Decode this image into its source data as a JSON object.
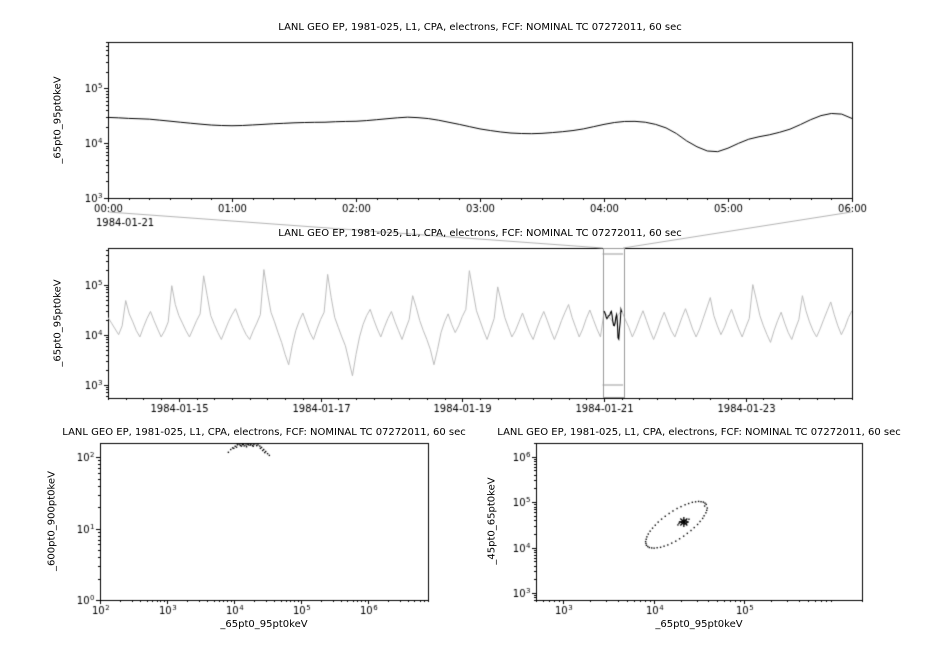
{
  "colors": {
    "background": "#ffffff",
    "series": "#000000",
    "context_series": "#bdbdbd",
    "selection": "#9a9a9a",
    "connector": "#b4b4b4",
    "frame": "#000000",
    "text": "#000000"
  },
  "chart_data": [
    {
      "type": "line",
      "title": "LANL GEO EP, 1981-025, L1, CPA, electrons, FCF: NOMINAL TC 07272011, 60 sec",
      "ylabel": "_65pt0_95pt0keV",
      "xlabel": "",
      "x_context_label": "1984-01-21",
      "xscale": "linear",
      "x_unit": "hours of 1984-01-21",
      "xlim": [
        0,
        6
      ],
      "x_ticks": [
        {
          "v": 0,
          "label": "00:00"
        },
        {
          "v": 1,
          "label": "01:00"
        },
        {
          "v": 2,
          "label": "02:00"
        },
        {
          "v": 3,
          "label": "03:00"
        },
        {
          "v": 4,
          "label": "04:00"
        },
        {
          "v": 5,
          "label": "05:00"
        },
        {
          "v": 6,
          "label": "06:00"
        }
      ],
      "x_minor_step": 0.1666667,
      "yscale": "log",
      "ylim": [
        1000,
        700000
      ],
      "y_tick_decades": [
        3,
        4,
        5
      ],
      "series": [
        {
          "name": "_65pt0_95pt0keV",
          "color": "#000000",
          "x_start": 0,
          "x_step": 0.0833333,
          "y": [
            29500,
            29000,
            28300,
            27900,
            27400,
            26300,
            25200,
            24100,
            23100,
            22200,
            21400,
            21000,
            20800,
            21000,
            21500,
            22000,
            22600,
            23000,
            23500,
            23800,
            24000,
            24100,
            24600,
            24900,
            25100,
            25800,
            26800,
            27900,
            29000,
            29800,
            29200,
            28100,
            26200,
            24000,
            22000,
            20000,
            18200,
            17000,
            16000,
            15300,
            15000,
            14900,
            15100,
            15600,
            16200,
            17000,
            18200,
            20000,
            22000,
            23800,
            24900,
            25000,
            24100,
            22000,
            19000,
            15000,
            11000,
            8600,
            7200,
            7000,
            8100,
            9900,
            11800,
            13100,
            14200,
            15800,
            18000,
            21800,
            26800,
            31800,
            34800,
            33900,
            28200
          ]
        }
      ]
    },
    {
      "type": "line",
      "title": "LANL GEO EP, 1981-025, L1, CPA, electrons, FCF: NOMINAL TC 07272011, 60 sec",
      "ylabel": "_65pt0_95pt0keV",
      "xlabel": "",
      "xscale": "linear",
      "x_unit": "days since 1984-01-14 00:00",
      "xlim": [
        0,
        10.5
      ],
      "x_ticks": [
        {
          "v": 1,
          "label": "1984-01-15"
        },
        {
          "v": 3,
          "label": "1984-01-17"
        },
        {
          "v": 5,
          "label": "1984-01-19"
        },
        {
          "v": 7,
          "label": "1984-01-21"
        },
        {
          "v": 9,
          "label": "1984-01-23"
        }
      ],
      "x_minor_step": 0.25,
      "yscale": "log",
      "ylim": [
        540,
        540000
      ],
      "y_tick_decades": [
        3,
        4,
        5
      ],
      "series": [
        {
          "name": "context",
          "color": "#bdbdbd",
          "x_start": 0,
          "x_step": 0.05,
          "y": [
            22000,
            17000,
            13000,
            10000,
            15000,
            48000,
            26000,
            18000,
            12000,
            9000,
            14000,
            21000,
            29000,
            19000,
            13000,
            9000,
            12000,
            18000,
            95000,
            40000,
            24000,
            17000,
            12000,
            9000,
            13000,
            19000,
            26000,
            150000,
            60000,
            24000,
            16000,
            11000,
            8000,
            12000,
            18000,
            25000,
            33000,
            21000,
            14000,
            10000,
            8000,
            12000,
            17000,
            25000,
            200000,
            70000,
            28000,
            18000,
            11000,
            7000,
            4000,
            2500,
            6000,
            12000,
            19000,
            27000,
            17000,
            11000,
            8000,
            13000,
            20000,
            28000,
            160000,
            55000,
            22000,
            14000,
            9000,
            6000,
            3000,
            1500,
            4000,
            9000,
            16000,
            24000,
            32000,
            20000,
            13000,
            9000,
            14000,
            21000,
            29000,
            18000,
            12000,
            8000,
            13000,
            20000,
            60000,
            35000,
            19000,
            12000,
            8000,
            5000,
            2500,
            5000,
            11000,
            18000,
            26000,
            16000,
            11000,
            15000,
            23000,
            32000,
            190000,
            75000,
            30000,
            19000,
            12000,
            8000,
            13000,
            21000,
            90000,
            45000,
            22000,
            14000,
            9000,
            12000,
            18000,
            27000,
            17000,
            11000,
            8000,
            13000,
            20000,
            29000,
            19000,
            12000,
            8000,
            12000,
            19000,
            28000,
            40000,
            22000,
            14000,
            9000,
            13000,
            21000,
            31000,
            20000,
            13000,
            9000,
            28000,
            24000,
            20000,
            16000,
            25000,
            30000,
            20000,
            14000,
            9000,
            13000,
            20000,
            30000,
            19000,
            12000,
            8000,
            12000,
            19000,
            28000,
            18000,
            12000,
            9000,
            14000,
            22000,
            33000,
            21000,
            13000,
            9000,
            13000,
            21000,
            34000,
            55000,
            24000,
            15000,
            10000,
            14000,
            22000,
            32000,
            20000,
            13000,
            9000,
            14000,
            21000,
            100000,
            50000,
            24000,
            15000,
            10000,
            7000,
            12000,
            19000,
            28000,
            17000,
            11000,
            8000,
            13000,
            20000,
            60000,
            30000,
            18000,
            12000,
            9000,
            13000,
            20000,
            30000,
            45000,
            25000,
            15000,
            10000,
            14000,
            22000,
            30000
          ]
        }
      ],
      "highlight": {
        "name": "selected interval 1984-01-21 00:00-06:00",
        "color": "#000000",
        "x_start": 7.0,
        "x_step": 0.0104167,
        "y": [
          29500,
          27900,
          25200,
          22200,
          20800,
          22000,
          23500,
          24100,
          25100,
          27900,
          29200,
          24000,
          18200,
          15300,
          15100,
          17000,
          22000,
          25000,
          19000,
          8600,
          8100,
          13100,
          18000,
          31800,
          28200
        ]
      },
      "selection": {
        "x1": 6.98,
        "x2": 7.27,
        "color": "#9a9a9a"
      }
    },
    {
      "type": "scatter",
      "title": "LANL GEO EP, 1981-025, L1, CPA, electrons, FCF: NOMINAL TC 07272011, 60 sec",
      "ylabel": "_600pt0_900pt0keV",
      "xlabel": "_65pt0_95pt0keV",
      "xscale": "log",
      "xlim": [
        100,
        8000000
      ],
      "x_tick_decades": [
        2,
        3,
        4,
        5,
        6
      ],
      "yscale": "log",
      "ylim": [
        1,
        158
      ],
      "y_tick_decades": [
        0,
        1,
        2
      ],
      "color": "#000000",
      "points": [
        [
          9000,
          128
        ],
        [
          8300,
          117
        ],
        [
          9600,
          135
        ],
        [
          10500,
          142
        ],
        [
          11300,
          149
        ],
        [
          12000,
          152
        ],
        [
          12800,
          155
        ],
        [
          13500,
          150
        ],
        [
          14300,
          144
        ],
        [
          15200,
          148
        ],
        [
          16000,
          153
        ],
        [
          17000,
          156
        ],
        [
          18000,
          151
        ],
        [
          19000,
          146
        ],
        [
          20000,
          150
        ],
        [
          21500,
          154
        ],
        [
          23000,
          149
        ],
        [
          24500,
          143
        ],
        [
          26000,
          137
        ],
        [
          28000,
          128
        ],
        [
          30000,
          120
        ],
        [
          32000,
          112
        ],
        [
          34000,
          106
        ],
        [
          15500,
          140
        ],
        [
          13000,
          143
        ],
        [
          11000,
          138
        ],
        [
          17500,
          147
        ],
        [
          22000,
          145
        ],
        [
          25000,
          133
        ],
        [
          12500,
          146
        ],
        [
          14000,
          152
        ],
        [
          16500,
          149
        ],
        [
          19500,
          142
        ],
        [
          27000,
          124
        ],
        [
          10000,
          133
        ],
        [
          29000,
          116
        ]
      ]
    },
    {
      "type": "scatter",
      "title": "LANL GEO EP, 1981-025, L1, CPA, electrons, FCF: NOMINAL TC 07272011, 60 sec",
      "ylabel": "_45pt0_65pt0keV",
      "xlabel": "_65pt0_95pt0keV",
      "xscale": "log",
      "xlim": [
        500,
        2000000
      ],
      "x_tick_decades": [
        3,
        4,
        5
      ],
      "yscale": "log",
      "ylim": [
        700,
        2000000
      ],
      "y_tick_decades": [
        3,
        4,
        5,
        6
      ],
      "color": "#000000",
      "cross": [
        21500,
        36500
      ],
      "points": [
        [
          38000,
          89000
        ],
        [
          39000,
          74000
        ],
        [
          37700,
          58200
        ],
        [
          34700,
          43800
        ],
        [
          30500,
          32200
        ],
        [
          25800,
          23700
        ],
        [
          21400,
          17800
        ],
        [
          17500,
          13800
        ],
        [
          14300,
          11400
        ],
        [
          11900,
          10100
        ],
        [
          10100,
          9700
        ],
        [
          8950,
          10000
        ],
        [
          8300,
          11200
        ],
        [
          8130,
          13500
        ],
        [
          8400,
          17200
        ],
        [
          9120,
          22900
        ],
        [
          10400,
          31000
        ],
        [
          12200,
          42200
        ],
        [
          14800,
          56200
        ],
        [
          18100,
          72300
        ],
        [
          22200,
          87500
        ],
        [
          26700,
          98900
        ],
        [
          31300,
          103500
        ],
        [
          35300,
          100000
        ],
        [
          36500,
          82000
        ],
        [
          38500,
          66000
        ],
        [
          36000,
          50000
        ],
        [
          32500,
          37500
        ],
        [
          28000,
          27500
        ],
        [
          23500,
          20500
        ],
        [
          19300,
          15600
        ],
        [
          15800,
          12500
        ],
        [
          13000,
          10700
        ],
        [
          10900,
          9900
        ],
        [
          9500,
          9800
        ],
        [
          8600,
          10500
        ],
        [
          8200,
          12300
        ],
        [
          8250,
          15200
        ],
        [
          8700,
          19800
        ],
        [
          9700,
          26700
        ],
        [
          11200,
          36300
        ],
        [
          13400,
          48700
        ],
        [
          16300,
          63800
        ],
        [
          20000,
          79500
        ],
        [
          24300,
          93000
        ],
        [
          29000,
          101500
        ],
        [
          33300,
          102000
        ],
        [
          36800,
          95000
        ],
        [
          19000,
          34000
        ],
        [
          20500,
          37000
        ],
        [
          22000,
          40000
        ],
        [
          23500,
          36500
        ],
        [
          21800,
          33000
        ],
        [
          20200,
          35500
        ],
        [
          22800,
          38500
        ],
        [
          21000,
          39500
        ],
        [
          19500,
          36800
        ],
        [
          23000,
          34500
        ],
        [
          24500,
          42000
        ],
        [
          18500,
          31500
        ]
      ]
    }
  ]
}
